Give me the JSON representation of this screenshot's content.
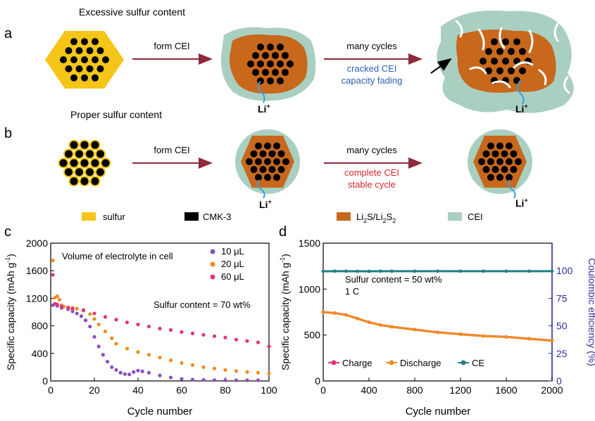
{
  "panel_a": {
    "letter": "a",
    "title": "Excessive sulfur content",
    "arrow1_label": "form CEI",
    "arrow2_label": "many cycles",
    "note_line1": "cracked CEI",
    "note_line2": "capacity fading",
    "li_label": "Li",
    "li_sup": "+"
  },
  "panel_b": {
    "letter": "b",
    "title": "Proper sulfur content",
    "arrow1_label": "form CEI",
    "arrow2_label": "many cycles",
    "note_line1": "complete CEI",
    "note_line2": "stable cycle",
    "li_label": "Li",
    "li_sup": "+"
  },
  "legend": {
    "sulfur": "sulfur",
    "cmk": "CMK-3",
    "li2s_a": "Li",
    "li2s_b": "S/Li",
    "li2s_c": "S",
    "li2s_sub": "2",
    "cei": "CEI"
  },
  "colors": {
    "sulfur": "#f5c518",
    "cmk": "#000000",
    "li2s": "#c8681c",
    "cei": "#a9cfc0",
    "arrow": "#8b2c3a",
    "note_a": "#2a5fb5",
    "note_b": "#d42a2a",
    "li_line": "#3aa0dd",
    "axis_right": "#2b2fa0",
    "series_10": "#8b4fc0",
    "series_20": "#f08c1e",
    "series_60": "#e0357f",
    "charge": "#e0357f",
    "discharge": "#f08c1e",
    "ce": "#1f7f86"
  },
  "panel_c": {
    "letter": "c",
    "annotation1": "Volume of electrolyte in cell",
    "annotation2": "Sulfur content = 70 wt%"
  },
  "panel_d": {
    "letter": "d",
    "annotation1": "Sulfur content = 50 wt%",
    "annotation2": "1 C"
  },
  "chart_data": [
    {
      "type": "scatter",
      "xlabel": "Cycle number",
      "ylabel": "Specific capacity (mAh g",
      "ylabel_sup": "-1",
      "ylabel_end": ")",
      "xlim": [
        0,
        100
      ],
      "ylim": [
        0,
        2000
      ],
      "xticks": [
        "0",
        "20",
        "40",
        "60",
        "80",
        "100"
      ],
      "yticks": [
        "0",
        "400",
        "800",
        "1200",
        "1600",
        "2000"
      ],
      "legend_position": "top-right",
      "series": [
        {
          "name": "10 μL",
          "x": [
            1,
            3,
            5,
            8,
            10,
            12,
            14,
            16,
            18,
            20,
            22,
            24,
            26,
            28,
            30,
            32,
            34,
            36,
            38,
            40,
            42,
            45,
            50,
            55,
            60,
            65,
            70,
            75,
            80,
            85,
            90,
            95
          ],
          "y": [
            1100,
            1090,
            1060,
            1040,
            1010,
            980,
            940,
            880,
            790,
            640,
            500,
            380,
            280,
            200,
            160,
            120,
            100,
            95,
            130,
            150,
            140,
            120,
            80,
            50,
            30,
            20,
            15,
            12,
            10,
            10,
            10,
            10
          ]
        },
        {
          "name": "20 μL",
          "x": [
            1,
            2,
            3,
            4,
            5,
            6,
            8,
            10,
            12,
            15,
            18,
            20,
            22,
            25,
            28,
            30,
            35,
            40,
            45,
            50,
            55,
            60,
            65,
            70,
            75,
            80,
            85,
            90,
            95,
            100
          ],
          "y": [
            1750,
            1210,
            1230,
            1180,
            1100,
            1080,
            1070,
            1060,
            1050,
            1020,
            970,
            900,
            820,
            720,
            620,
            540,
            470,
            420,
            380,
            340,
            300,
            260,
            230,
            200,
            180,
            160,
            145,
            130,
            120,
            110
          ]
        },
        {
          "name": "60 μL",
          "x": [
            1,
            2,
            3,
            5,
            8,
            10,
            15,
            20,
            25,
            30,
            35,
            40,
            45,
            50,
            55,
            60,
            65,
            70,
            75,
            80,
            85,
            90,
            95,
            100
          ],
          "y": [
            1540,
            1120,
            1110,
            1080,
            1060,
            1050,
            1030,
            980,
            930,
            890,
            850,
            820,
            790,
            760,
            740,
            710,
            690,
            670,
            650,
            630,
            600,
            580,
            560,
            500
          ]
        }
      ]
    },
    {
      "type": "scatter",
      "xlabel": "Cycle number",
      "ylabel": "Specific capacity (mAh g",
      "ylabel_sup": "-1",
      "ylabel_end": ")",
      "y2label": "Coulombic efficiency (%)",
      "xlim": [
        0,
        2000
      ],
      "ylim": [
        0,
        1500
      ],
      "y2lim": [
        0,
        125
      ],
      "xticks": [
        "0",
        "400",
        "800",
        "1200",
        "1600",
        "2000"
      ],
      "yticks": [
        "0",
        "500",
        "1000",
        "1500"
      ],
      "y2ticks": [
        "0",
        "25",
        "50",
        "75",
        "100"
      ],
      "legend_position": "bottom-left",
      "series": [
        {
          "name": "Charge",
          "x": [
            0,
            100,
            200,
            300,
            400,
            500,
            600,
            800,
            1000,
            1200,
            1400,
            1600,
            1800,
            2000
          ],
          "y": [
            750,
            740,
            720,
            680,
            640,
            610,
            590,
            560,
            530,
            510,
            490,
            480,
            460,
            440
          ]
        },
        {
          "name": "Discharge",
          "x": [
            0,
            100,
            200,
            300,
            400,
            500,
            600,
            800,
            1000,
            1200,
            1400,
            1600,
            1800,
            2000
          ],
          "y": [
            748,
            738,
            718,
            678,
            638,
            608,
            588,
            558,
            528,
            508,
            488,
            478,
            458,
            438
          ]
        },
        {
          "name": "CE",
          "axis": "right",
          "x": [
            0,
            100,
            200,
            300,
            400,
            500,
            600,
            800,
            1000,
            1200,
            1400,
            1600,
            1800,
            2000
          ],
          "y": [
            99.5,
            99.6,
            99.6,
            99.5,
            99.5,
            99.6,
            99.6,
            99.6,
            99.6,
            99.6,
            99.6,
            99.6,
            99.6,
            99.6
          ]
        }
      ]
    }
  ]
}
